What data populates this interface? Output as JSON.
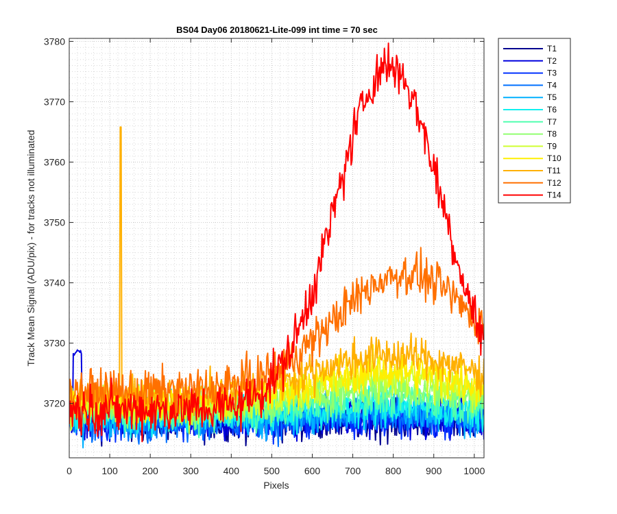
{
  "chart_data": {
    "type": "line",
    "title": "BS04 Day06 20180621-Lite-099 int time = 70 sec",
    "xlabel": "Pixels",
    "ylabel": "Track Mean Signal (ADU/pix) - for tracks not illuminated",
    "xlim": [
      0,
      1024
    ],
    "ylim": [
      3711,
      3780.5
    ],
    "x_ticks": [
      "0",
      "100",
      "200",
      "300",
      "400",
      "500",
      "600",
      "700",
      "800",
      "900",
      "1000"
    ],
    "y_ticks": [
      "3720",
      "3730",
      "3740",
      "3750",
      "3760",
      "3770",
      "3780"
    ],
    "grid": "on (major and minor)",
    "legend_position": "outside-right",
    "series": [
      {
        "name": "T1",
        "color": "#00008f",
        "baseline": 3717.0,
        "peak": 0.0,
        "center": 800,
        "width": 250,
        "noise": 2.2
      },
      {
        "name": "T2",
        "color": "#0000df",
        "baseline": 3717.0,
        "peak": 0.5,
        "center": 800,
        "width": 250,
        "noise": 2.2
      },
      {
        "name": "T3",
        "color": "#0030ff",
        "baseline": 3717.0,
        "peak": 0.8,
        "center": 800,
        "width": 250,
        "noise": 2.2
      },
      {
        "name": "T4",
        "color": "#0070ff",
        "baseline": 3717.0,
        "peak": 1.0,
        "center": 800,
        "width": 250,
        "noise": 2.2
      },
      {
        "name": "T5",
        "color": "#00b0ff",
        "baseline": 3717.5,
        "peak": 1.2,
        "center": 800,
        "width": 250,
        "noise": 2.2
      },
      {
        "name": "T6",
        "color": "#10f0ef",
        "baseline": 3718.0,
        "peak": 1.5,
        "center": 800,
        "width": 250,
        "noise": 2.2
      },
      {
        "name": "T7",
        "color": "#50ffaf",
        "baseline": 3718.5,
        "peak": 2.5,
        "center": 800,
        "width": 260,
        "noise": 2.2
      },
      {
        "name": "T8",
        "color": "#90ff6f",
        "baseline": 3719.0,
        "peak": 3.5,
        "center": 800,
        "width": 260,
        "noise": 2.2
      },
      {
        "name": "T9",
        "color": "#cfff30",
        "baseline": 3719.5,
        "peak": 4.5,
        "center": 800,
        "width": 270,
        "noise": 2.2
      },
      {
        "name": "T10",
        "color": "#ffef00",
        "baseline": 3720.0,
        "peak": 5.5,
        "center": 800,
        "width": 280,
        "noise": 2.3
      },
      {
        "name": "T11",
        "color": "#ffb000",
        "baseline": 3721.0,
        "peak": 7.0,
        "center": 800,
        "width": 290,
        "noise": 2.3
      },
      {
        "name": "T12",
        "color": "#ff7000",
        "baseline": 3722.0,
        "peak": 19.5,
        "center": 830,
        "width": 250,
        "noise": 2.5
      },
      {
        "name": "T14",
        "color": "#ff0000",
        "baseline": 3719.0,
        "peak": 57.0,
        "center": 790,
        "width": 185,
        "noise": 2.8
      }
    ],
    "annotations": [
      {
        "series": "T11",
        "type": "spike",
        "x": 127,
        "y_top": 3765.8
      },
      {
        "series": "T2",
        "type": "blip",
        "x_range": [
          10,
          30
        ],
        "y": 3728
      }
    ]
  }
}
